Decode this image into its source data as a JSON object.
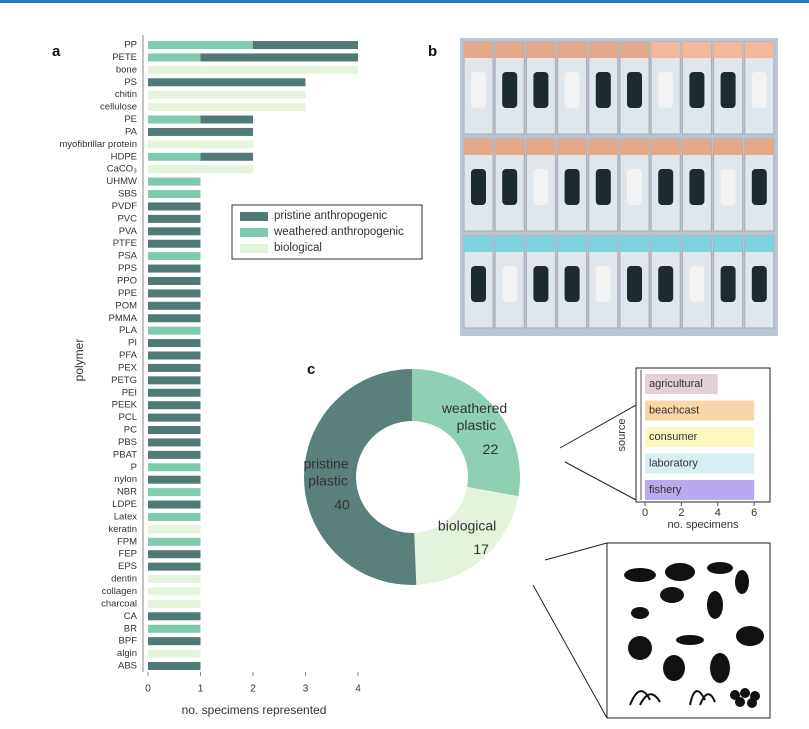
{
  "chart_data": [
    {
      "type": "stacked-hbar",
      "label": "a",
      "categories": [
        "PP",
        "PETE",
        "bone",
        "PS",
        "chitin",
        "cellulose",
        "PE",
        "PA",
        "myofibrillar protein",
        "HDPE",
        "CaCO₃",
        "UHMW",
        "SBS",
        "PVDF",
        "PVC",
        "PVA",
        "PTFE",
        "PSA",
        "PPS",
        "PPO",
        "PPE",
        "POM",
        "PMMA",
        "PLA",
        "PI",
        "PFA",
        "PEX",
        "PETG",
        "PEI",
        "PEEK",
        "PCL",
        "PC",
        "PBS",
        "PBAT",
        "P",
        "nylon",
        "NBR",
        "LDPE",
        "Latex",
        "keratin",
        "FPM",
        "FEP",
        "EPS",
        "dentin",
        "collagen",
        "charcoal",
        "CA",
        "BR",
        "BPF",
        "algin",
        "ABS"
      ],
      "series": [
        {
          "name": "weathered anthropogenic",
          "color": "#7fcbb0",
          "values": [
            2,
            1,
            0,
            0,
            0,
            0,
            1,
            0,
            0,
            1,
            0,
            1,
            1,
            0,
            0,
            0,
            0,
            1,
            0,
            0,
            0,
            0,
            0,
            1,
            0,
            0,
            0,
            0,
            0,
            0,
            0,
            0,
            0,
            0,
            1,
            0,
            1,
            0,
            1,
            0,
            1,
            0,
            0,
            0,
            0,
            0,
            0,
            1,
            0,
            0,
            0
          ]
        },
        {
          "name": "pristine anthropogenic",
          "color": "#4f7a75",
          "values": [
            2,
            3,
            0,
            3,
            0,
            0,
            1,
            2,
            0,
            1,
            0,
            0,
            0,
            1,
            1,
            1,
            1,
            0,
            1,
            1,
            1,
            1,
            1,
            0,
            1,
            1,
            1,
            1,
            1,
            1,
            1,
            1,
            1,
            1,
            0,
            1,
            0,
            1,
            0,
            0,
            0,
            1,
            1,
            0,
            0,
            0,
            1,
            0,
            1,
            0,
            1
          ]
        },
        {
          "name": "biological",
          "color": "#e4f3dc",
          "values": [
            0,
            0,
            4,
            0,
            3,
            3,
            0,
            0,
            2,
            0,
            2,
            0,
            0,
            0,
            0,
            0,
            0,
            0,
            0,
            0,
            0,
            0,
            0,
            0,
            0,
            0,
            0,
            0,
            0,
            0,
            0,
            0,
            0,
            0,
            0,
            0,
            0,
            0,
            0,
            1,
            0,
            0,
            0,
            1,
            1,
            1,
            0,
            0,
            0,
            1,
            0
          ]
        }
      ],
      "legend_order": [
        1,
        0,
        2
      ],
      "xlim": [
        0,
        4
      ],
      "xticks": [
        0,
        1,
        2,
        3,
        4
      ],
      "xlabel": "no. specimens represented",
      "ylabel": "polymer"
    },
    {
      "type": "donut",
      "label": "c",
      "categories": [
        "weathered plastic",
        "biological",
        "pristine plastic"
      ],
      "values": [
        22,
        17,
        40
      ],
      "colors": [
        "#8fcfb4",
        "#e4f3dc",
        "#5a807c"
      ],
      "label_colors": [
        "#ffffff",
        "#5a8a86",
        "#ffffff"
      ]
    },
    {
      "type": "hbar",
      "categories": [
        "agricultural",
        "beachcast",
        "consumer",
        "laboratory",
        "fishery"
      ],
      "values": [
        4,
        6,
        6,
        6,
        6
      ],
      "colors": [
        "#e3cfd9",
        "#f8d6a8",
        "#fbf8c0",
        "#d8eef2",
        "#b9a9f0"
      ],
      "xlim": [
        0,
        6.5
      ],
      "xticks": [
        0,
        2,
        4,
        6
      ],
      "xlabel": "no. specimens",
      "ylabel": "source"
    }
  ],
  "photo_label": "b"
}
